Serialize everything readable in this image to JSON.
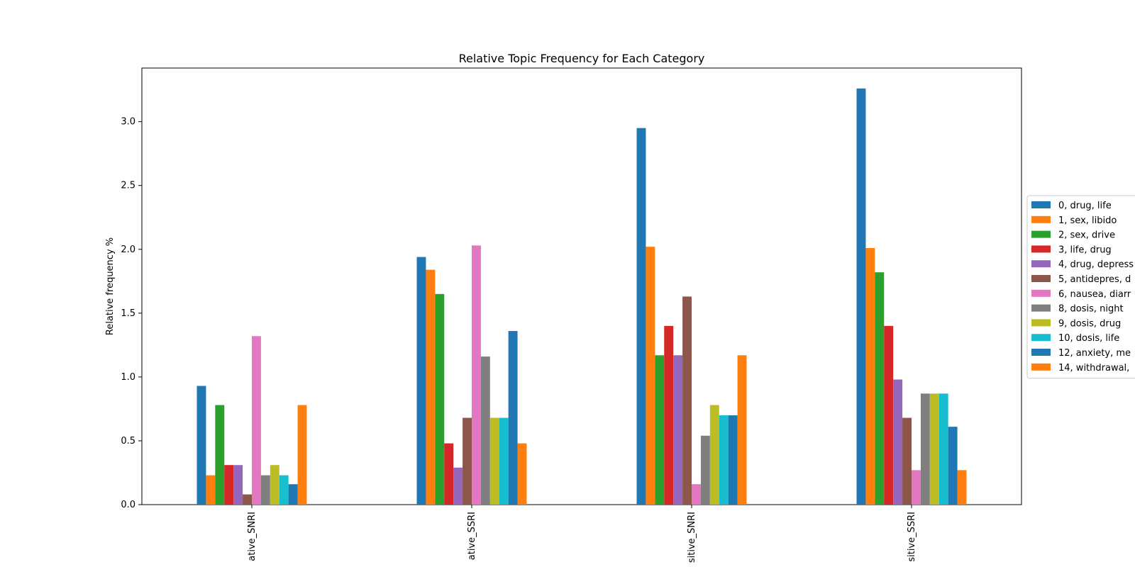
{
  "chart_data": {
    "type": "bar",
    "title": "Relative Topic Frequency for Each Category",
    "xlabel": "",
    "ylabel": "Relative frequency %",
    "ylim": [
      0,
      3.42
    ],
    "yticks": [
      0.0,
      0.5,
      1.0,
      1.5,
      2.0,
      2.5,
      3.0
    ],
    "ytick_labels": [
      "0.0",
      "0.5",
      "1.0",
      "1.5",
      "2.0",
      "2.5",
      "3.0"
    ],
    "grid": false,
    "legend_position": "center-right (outside plot)",
    "categories": [
      "ative_SNRI",
      "ative_SSRI",
      "sitive_SNRI",
      "sitive_SSRI"
    ],
    "series": [
      {
        "name": "0, drug, life",
        "color": "#1f77b4",
        "values": [
          0.93,
          1.94,
          2.95,
          3.26
        ]
      },
      {
        "name": "1, sex, libido",
        "color": "#ff7f0e",
        "values": [
          0.23,
          1.84,
          2.02,
          2.01
        ]
      },
      {
        "name": "2, sex, drive",
        "color": "#2ca02c",
        "values": [
          0.78,
          1.65,
          1.17,
          1.82
        ]
      },
      {
        "name": "3, life, drug",
        "color": "#d62728",
        "values": [
          0.31,
          0.48,
          1.4,
          1.4
        ]
      },
      {
        "name": "4, drug, depress",
        "color": "#9467bd",
        "values": [
          0.31,
          0.29,
          1.17,
          0.98
        ]
      },
      {
        "name": "5, antidepres, d",
        "color": "#8c564b",
        "values": [
          0.08,
          0.68,
          1.63,
          0.68
        ]
      },
      {
        "name": "6, nausea, diarr",
        "color": "#e377c2",
        "values": [
          1.32,
          2.03,
          0.16,
          0.27
        ]
      },
      {
        "name": "8, dosis, night",
        "color": "#7f7f7f",
        "values": [
          0.23,
          1.16,
          0.54,
          0.87
        ]
      },
      {
        "name": "9, dosis, drug",
        "color": "#bcbd22",
        "values": [
          0.31,
          0.68,
          0.78,
          0.87
        ]
      },
      {
        "name": "10, dosis, life",
        "color": "#17becf",
        "values": [
          0.23,
          0.68,
          0.7,
          0.87
        ]
      },
      {
        "name": "12, anxiety, me",
        "color": "#1f77b4",
        "values": [
          0.16,
          1.36,
          0.7,
          0.61
        ]
      },
      {
        "name": "14, withdrawal,",
        "color": "#ff7f0e",
        "values": [
          0.78,
          0.48,
          1.17,
          0.27
        ]
      }
    ]
  }
}
